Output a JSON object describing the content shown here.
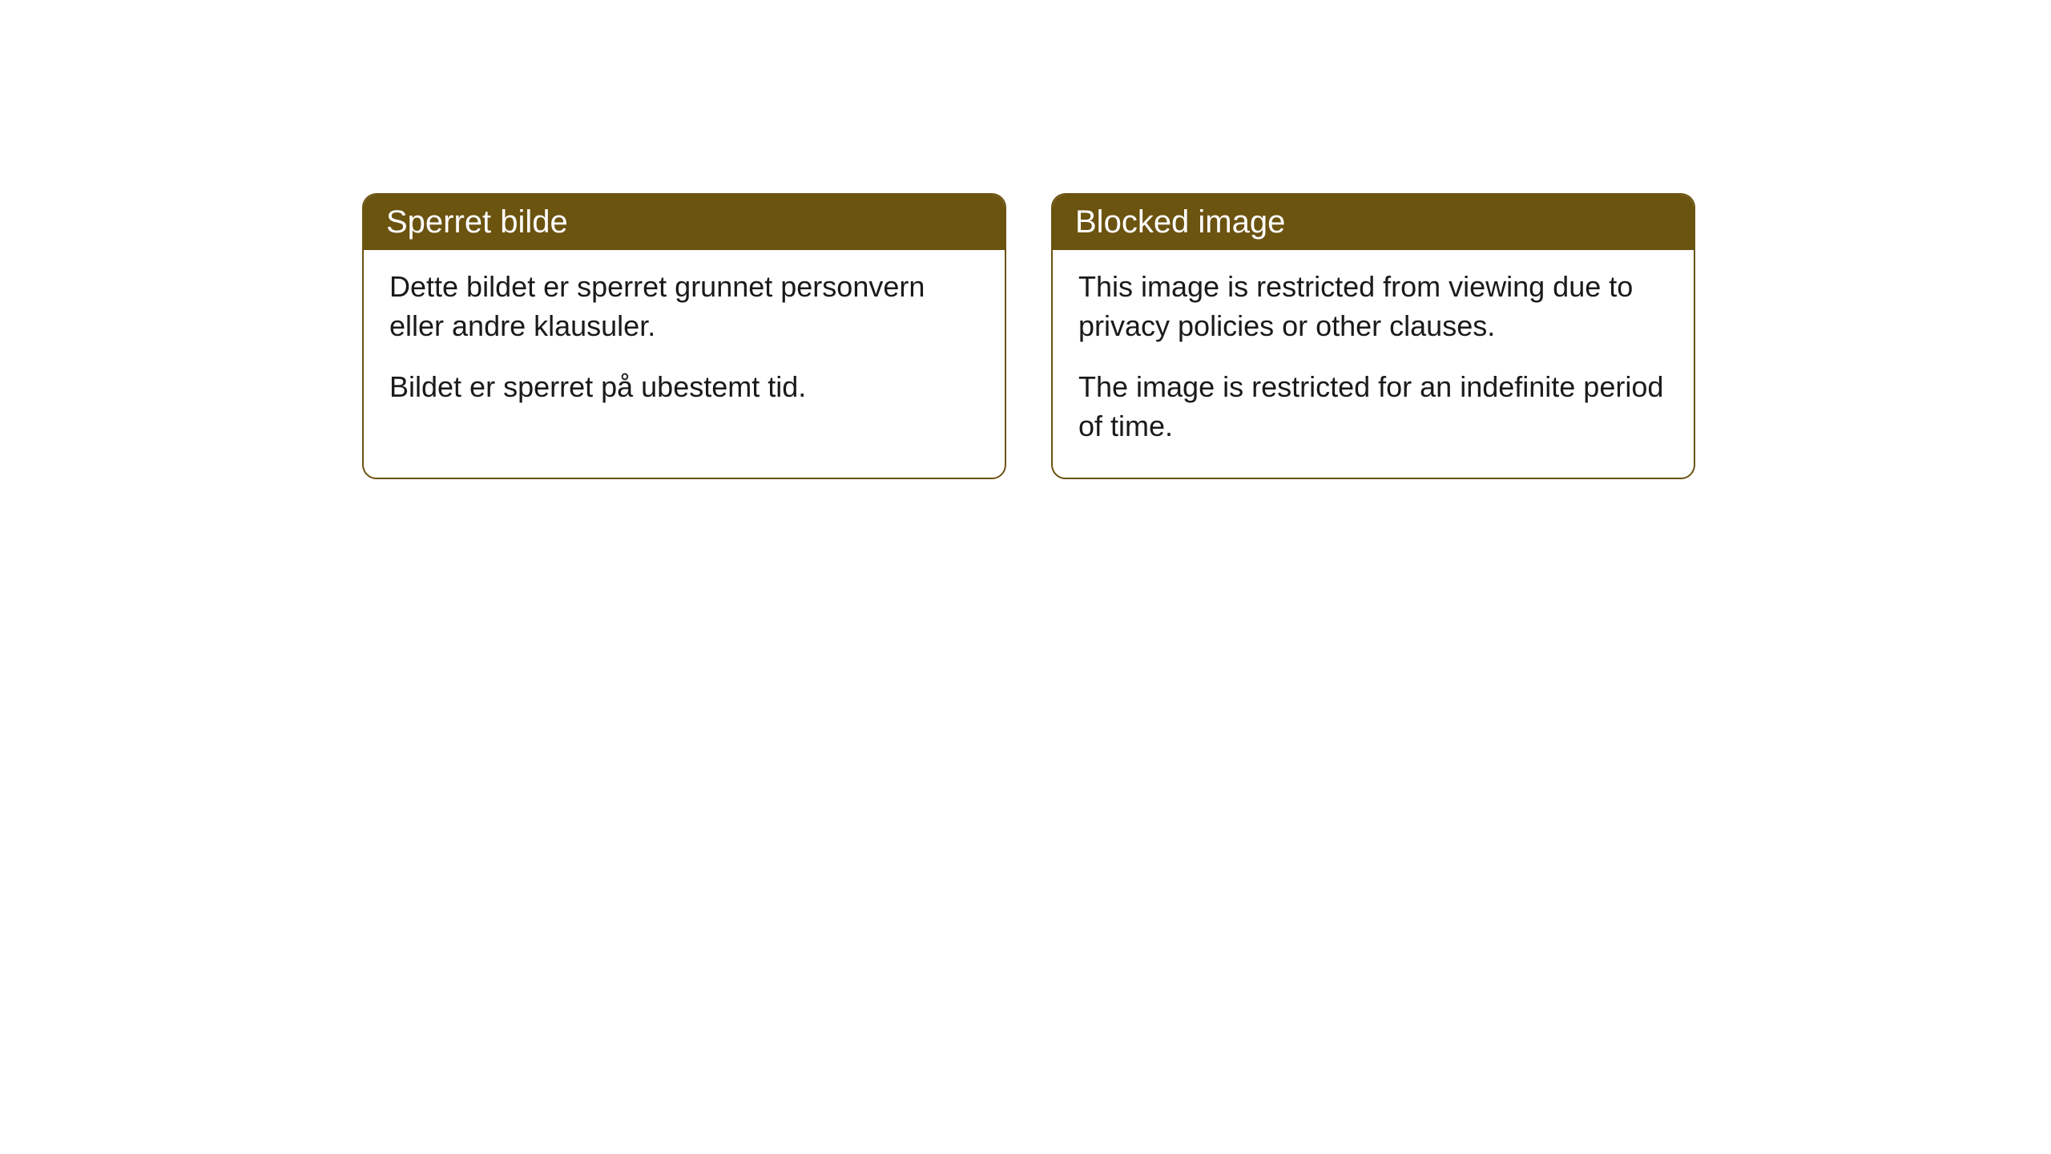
{
  "cards": [
    {
      "title": "Sperret bilde",
      "paragraph1": "Dette bildet er sperret grunnet personvern eller andre klausuler.",
      "paragraph2": "Bildet er sperret på ubestemt tid."
    },
    {
      "title": "Blocked image",
      "paragraph1": "This image is restricted from viewing due to privacy policies or other clauses.",
      "paragraph2": "The image is restricted for an indefinite period of time."
    }
  ],
  "style": {
    "header_background": "#6b5310",
    "header_text_color": "#ffffff",
    "border_color": "#6b5310",
    "body_background": "#ffffff",
    "body_text_color": "#1a1a1a",
    "border_radius": 18,
    "header_fontsize": 40,
    "body_fontsize": 36
  }
}
